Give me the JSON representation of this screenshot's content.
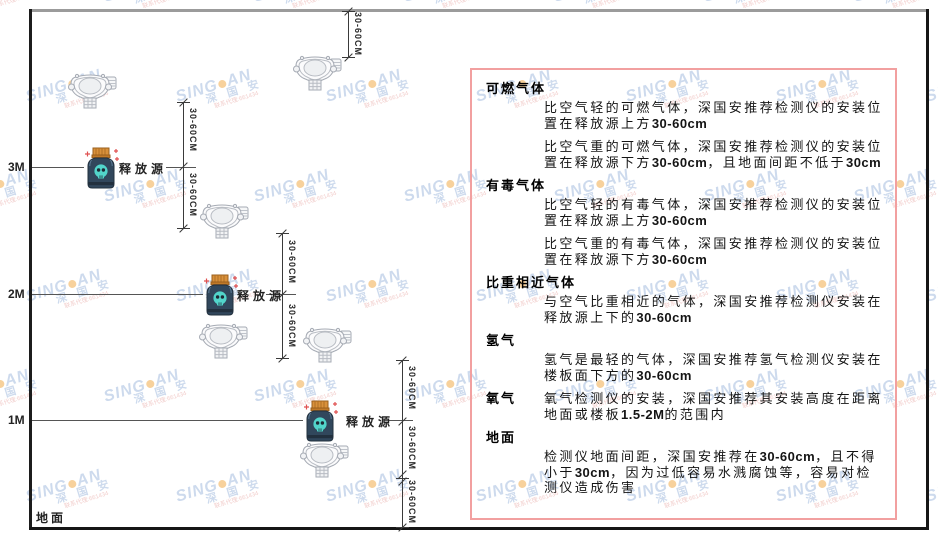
{
  "colors": {
    "panel_border": "#f2a0a0",
    "watermark_blue": "#9cb7dc",
    "watermark_dot_orange": "#f0a43c",
    "watermark_red": "#e49a96",
    "source_body_navy": "#31475c",
    "source_cap_orange": "#d9913b",
    "source_skull_teal": "#52d5cb",
    "sparkle_red": "#e05050",
    "detector_gray": "#a6abb4",
    "ceiling_gray": "#9b9b9b",
    "frame_black": "#1c1c1c"
  },
  "watermark": {
    "brand_left": "SING",
    "brand_right": "AN",
    "brand_cn": "深 国 安",
    "agent_line": "联系代理:661434"
  },
  "diagram": {
    "ground_label": "地面",
    "source_label": "释放源",
    "dim_label": "30-60CM",
    "height_labels": [
      "3M",
      "2M",
      "1M"
    ]
  },
  "panel": {
    "sections": [
      {
        "heading": "可燃气体",
        "inline": false,
        "paragraphs": [
          [
            {
              "t": "比空气轻的可燃气体，深国安推荐检测仪的安装位置在释放源上方"
            },
            {
              "t": "30-60cm",
              "b": true
            }
          ],
          [
            {
              "t": "比空气重的可燃气体，深国安推荐检测仪的安装位置在释放源下方"
            },
            {
              "t": "30-60cm",
              "b": true
            },
            {
              "t": "，且地面间距不低于"
            },
            {
              "t": "30cm",
              "b": true
            }
          ]
        ]
      },
      {
        "heading": "有毒气体",
        "inline": false,
        "paragraphs": [
          [
            {
              "t": "比空气轻的有毒气体，深国安推荐检测仪的安装位置在释放源上方"
            },
            {
              "t": "30-60cm",
              "b": true
            }
          ],
          [
            {
              "t": "比空气重的有毒气体，深国安推荐检测仪的安装位置在释放源下方"
            },
            {
              "t": "30-60cm",
              "b": true
            }
          ]
        ]
      },
      {
        "heading": "比重相近气体",
        "inline": false,
        "paragraphs": [
          [
            {
              "t": "与空气比重相近的气体，深国安推荐检测仪安装在释放源上下的"
            },
            {
              "t": "30-60cm",
              "b": true
            }
          ]
        ]
      },
      {
        "heading": "氢气",
        "inline": false,
        "paragraphs": [
          [
            {
              "t": "氢气是最轻的气体，深国安推荐氢气检测仪安装在楼板面下方的"
            },
            {
              "t": "30-60cm",
              "b": true
            }
          ]
        ]
      },
      {
        "heading": "氧气",
        "inline": true,
        "paragraphs": [
          [
            {
              "t": "氧气检测仪的安装，深国安推荐其安装高度在距离地面或楼板"
            },
            {
              "t": "1.5-2M",
              "b": true
            },
            {
              "t": "的范围内"
            }
          ]
        ]
      },
      {
        "heading": "地面",
        "inline": false,
        "paragraphs": [
          [
            {
              "t": "检测仪地面间距，深国安推荐在"
            },
            {
              "t": "30-60cm",
              "b": true
            },
            {
              "t": "，且不得小于"
            },
            {
              "t": "30cm",
              "b": true
            },
            {
              "t": "，因为过低容易水溅腐蚀等，容易对检测仪造成伤害"
            }
          ]
        ]
      }
    ]
  }
}
